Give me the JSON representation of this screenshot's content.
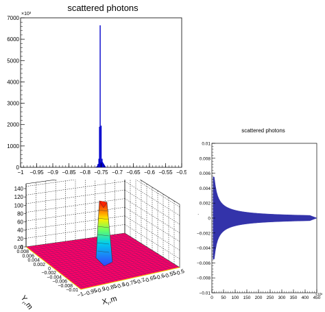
{
  "colors": {
    "hist": "#0000cc",
    "scatter": "#3333aa",
    "surface_base": "#ff0066",
    "surface_grid": "#8b1a6b"
  },
  "chart_data": [
    {
      "type": "bar",
      "title": "scattered photons",
      "exponent_label": "×10³",
      "xlim": [
        -1,
        -0.5
      ],
      "ylim": [
        0,
        7000
      ],
      "x_ticks": [
        "−1",
        "−0.95",
        "−0.9",
        "−0.85",
        "−0.8",
        "−0.75",
        "−0.7",
        "−0.65",
        "−0.6",
        "−0.55",
        "−0.5"
      ],
      "y_ticks": [
        "0",
        "1000",
        "2000",
        "3000",
        "4000",
        "5000",
        "6000",
        "7000"
      ],
      "x": [
        -0.765,
        -0.76,
        -0.757,
        -0.755,
        -0.753,
        -0.75,
        -0.747,
        -0.745,
        -0.742,
        -0.74,
        -0.735
      ],
      "values": [
        30,
        150,
        400,
        1900,
        6650,
        1950,
        400,
        150,
        60,
        25,
        10
      ]
    },
    {
      "type": "surface",
      "x_ticks": [
        "−1",
        "−0.95",
        "−0.9",
        "−0.85",
        "−0.8",
        "−0.75",
        "−0.7",
        "−0.65",
        "−0.6",
        "−0.55",
        "−0.5"
      ],
      "y_ticks": [
        "0.01",
        "0.008",
        "0.006",
        "0.004",
        "0.002",
        "0",
        "−0.002",
        "−0.004",
        "−0.006",
        "−0.008",
        "−0.01"
      ],
      "z_ticks": [
        "0",
        "20",
        "40",
        "60",
        "80",
        "100",
        "120",
        "140"
      ],
      "xlabel": "X",
      "xsub": "r",
      "xunit": ",m",
      "ylabel": "Y",
      "ysub": "r",
      "yunit": ",m",
      "zlim": [
        0,
        145
      ],
      "peak_x": -0.75,
      "peak_y": 0,
      "peak_z": 140
    },
    {
      "type": "scatter",
      "title": "scattered photons",
      "exponent_label": "×10³",
      "xlim": [
        0,
        450
      ],
      "ylim": [
        -0.01,
        0.01
      ],
      "x_ticks": [
        "0",
        "50",
        "100",
        "150",
        "200",
        "250",
        "300",
        "350",
        "400",
        "450"
      ],
      "y_ticks": [
        "0.01",
        "0.008",
        "0.006",
        "0.004",
        "0.002",
        "0",
        "−0.002",
        "−0.004",
        "−0.006",
        "−0.008",
        "−0.01"
      ],
      "y_axis_label": "·"
    }
  ]
}
